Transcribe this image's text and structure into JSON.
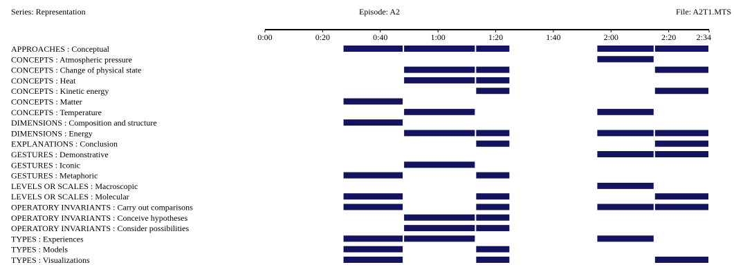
{
  "header": {
    "series": "Series: Representation",
    "episode": "Episode: A2",
    "file": "File: A2T1.MTS"
  },
  "colors": {
    "bar": "#14145e",
    "axis": "#000000",
    "text": "#000000"
  },
  "chart_data": {
    "type": "timeline",
    "x_unit": "m:ss",
    "xlim": [
      "0:00",
      "2:34"
    ],
    "ticks": [
      "0:00",
      "0:20",
      "0:40",
      "1:00",
      "1:20",
      "1:40",
      "2:00",
      "2:20",
      "2:34"
    ],
    "rows": [
      {
        "label": "APPROACHES : Conceptual",
        "segments": [
          [
            "0:27",
            "0:48"
          ],
          [
            "0:48",
            "1:13"
          ],
          [
            "1:13",
            "1:25"
          ],
          [
            "1:55",
            "2:15"
          ],
          [
            "2:15",
            "2:34"
          ]
        ]
      },
      {
        "label": "CONCEPTS : Atmospheric pressure",
        "segments": [
          [
            "1:55",
            "2:15"
          ]
        ]
      },
      {
        "label": "CONCEPTS : Change of physical state",
        "segments": [
          [
            "0:48",
            "1:13"
          ],
          [
            "1:13",
            "1:25"
          ],
          [
            "2:15",
            "2:34"
          ]
        ]
      },
      {
        "label": "CONCEPTS : Heat",
        "segments": [
          [
            "0:48",
            "1:13"
          ],
          [
            "1:13",
            "1:25"
          ]
        ]
      },
      {
        "label": "CONCEPTS : Kinetic energy",
        "segments": [
          [
            "1:13",
            "1:25"
          ],
          [
            "2:15",
            "2:34"
          ]
        ]
      },
      {
        "label": "CONCEPTS : Matter",
        "segments": [
          [
            "0:27",
            "0:48"
          ]
        ]
      },
      {
        "label": "CONCEPTS : Temperature",
        "segments": [
          [
            "0:48",
            "1:13"
          ],
          [
            "1:55",
            "2:15"
          ]
        ]
      },
      {
        "label": "DIMENSIONS : Composition and structure",
        "segments": [
          [
            "0:27",
            "0:48"
          ]
        ]
      },
      {
        "label": "DIMENSIONS : Energy",
        "segments": [
          [
            "0:48",
            "1:13"
          ],
          [
            "1:13",
            "1:25"
          ],
          [
            "1:55",
            "2:15"
          ],
          [
            "2:15",
            "2:34"
          ]
        ]
      },
      {
        "label": "EXPLANATIONS : Conclusion",
        "segments": [
          [
            "1:13",
            "1:25"
          ],
          [
            "2:15",
            "2:34"
          ]
        ]
      },
      {
        "label": "GESTURES : Demonstrative",
        "segments": [
          [
            "1:55",
            "2:15"
          ],
          [
            "2:15",
            "2:34"
          ]
        ]
      },
      {
        "label": "GESTURES : Iconic",
        "segments": [
          [
            "0:48",
            "1:13"
          ]
        ]
      },
      {
        "label": "GESTURES : Metaphoric",
        "segments": [
          [
            "0:27",
            "0:48"
          ],
          [
            "1:13",
            "1:25"
          ]
        ]
      },
      {
        "label": "LEVELS OR SCALES : Macroscopic",
        "segments": [
          [
            "1:55",
            "2:15"
          ]
        ]
      },
      {
        "label": "LEVELS OR SCALES : Molecular",
        "segments": [
          [
            "0:27",
            "0:48"
          ],
          [
            "1:13",
            "1:25"
          ],
          [
            "2:15",
            "2:34"
          ]
        ]
      },
      {
        "label": "OPERATORY INVARIANTS : Carry out comparisons",
        "segments": [
          [
            "0:27",
            "0:48"
          ],
          [
            "1:13",
            "1:25"
          ],
          [
            "1:55",
            "2:15"
          ],
          [
            "2:15",
            "2:34"
          ]
        ]
      },
      {
        "label": "OPERATORY INVARIANTS : Conceive hypotheses",
        "segments": [
          [
            "0:48",
            "1:13"
          ],
          [
            "1:13",
            "1:25"
          ]
        ]
      },
      {
        "label": "OPERATORY INVARIANTS : Consider possibilities",
        "segments": [
          [
            "0:48",
            "1:13"
          ],
          [
            "1:13",
            "1:25"
          ]
        ]
      },
      {
        "label": "TYPES : Experiences",
        "segments": [
          [
            "0:27",
            "0:48"
          ],
          [
            "0:48",
            "1:13"
          ],
          [
            "1:55",
            "2:15"
          ]
        ]
      },
      {
        "label": "TYPES : Models",
        "segments": [
          [
            "0:27",
            "0:48"
          ],
          [
            "1:13",
            "1:25"
          ]
        ]
      },
      {
        "label": "TYPES : Visualizations",
        "segments": [
          [
            "0:27",
            "0:48"
          ],
          [
            "1:13",
            "1:25"
          ],
          [
            "2:15",
            "2:34"
          ]
        ]
      }
    ]
  }
}
